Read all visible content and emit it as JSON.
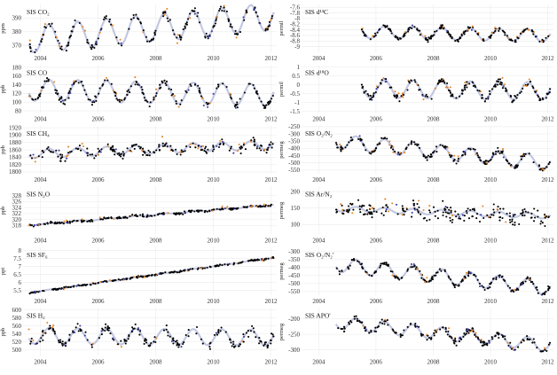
{
  "chart_data": [
    {
      "type": "scatter",
      "title": "SIS CO₂",
      "ylabel": "ppm",
      "ylim": [
        365,
        400
      ],
      "yticks": [
        370,
        380,
        390
      ],
      "xlim": [
        2003.4,
        2012.2
      ],
      "xticks": [
        "2004",
        "2006",
        "2008",
        "2010",
        "2012"
      ],
      "x_start": 2003.6,
      "x_end": 2012.1,
      "series_style": "seasonal",
      "trend": [
        375,
        2.0
      ],
      "amplitude": 10,
      "noise": 2.5
    },
    {
      "type": "scatter",
      "title": "SIS CO",
      "ylabel": "ppb",
      "ylim": [
        75,
        185
      ],
      "yticks": [
        80,
        100,
        120,
        140,
        160,
        180
      ],
      "xlim": [
        2003.4,
        2012.2
      ],
      "xticks": [
        "2004",
        "2006",
        "2008",
        "2010",
        "2012"
      ],
      "x_start": 2003.6,
      "x_end": 2012.1,
      "series_style": "seasonal",
      "trend": [
        128,
        -1.5
      ],
      "amplitude": 25,
      "noise": 8
    },
    {
      "type": "scatter",
      "title": "SIS CH₄",
      "ylabel": "ppb",
      "ylim": [
        1795,
        1925
      ],
      "yticks": [
        1800,
        1820,
        1840,
        1860,
        1880,
        1900,
        1920
      ],
      "xlim": [
        2003.4,
        2012.2
      ],
      "xticks": [
        "2004",
        "2006",
        "2008",
        "2010",
        "2012"
      ],
      "x_start": 2003.6,
      "x_end": 2012.1,
      "series_style": "seasonal",
      "trend": [
        1850,
        3.0
      ],
      "amplitude": 12,
      "noise": 12
    },
    {
      "type": "scatter",
      "title": "SIS N₂O",
      "ylabel": "ppb",
      "ylim": [
        315,
        331
      ],
      "yticks": [
        318,
        320,
        322,
        324,
        326,
        328
      ],
      "xlim": [
        2003.4,
        2012.2
      ],
      "xticks": [
        "2004",
        "2006",
        "2008",
        "2010",
        "2012"
      ],
      "x_start": 2003.6,
      "x_end": 2012.1,
      "series_style": "trend",
      "trend": [
        318.4,
        0.8
      ],
      "amplitude": 0.2,
      "noise": 0.4
    },
    {
      "type": "scatter",
      "title": "SIS SF₆",
      "ylabel": "ppt",
      "ylim": [
        5.2,
        8.2
      ],
      "yticks": [
        5.5,
        6.0,
        6.5,
        7.0,
        7.5,
        8.0
      ],
      "xlim": [
        2003.4,
        2012.2
      ],
      "xticks": [
        "2004",
        "2006",
        "2008",
        "2010",
        "2012"
      ],
      "x_start": 2003.6,
      "x_end": 2012.1,
      "series_style": "trend",
      "trend": [
        5.45,
        0.26
      ],
      "amplitude": 0.02,
      "noise": 0.05
    },
    {
      "type": "scatter",
      "title": "SIS H₂",
      "ylabel": "ppb",
      "ylim": [
        485,
        605
      ],
      "yticks": [
        500,
        520,
        540,
        560,
        580,
        600
      ],
      "xlim": [
        2003.4,
        2012.2
      ],
      "xticks": [
        "2004",
        "2006",
        "2008",
        "2010",
        "2012"
      ],
      "x_start": 2003.6,
      "x_end": 2012.1,
      "series_style": "seasonal",
      "trend": [
        535,
        -0.5
      ],
      "amplitude": 20,
      "noise": 12
    },
    {
      "type": "scatter",
      "title": "SIS d¹³C",
      "ylabel": "permil",
      "ylim": [
        -9.2,
        -7.5
      ],
      "yticks": [
        -9.0,
        -8.8,
        -8.6,
        -8.4,
        -8.2,
        -8.0,
        -7.8,
        -7.6
      ],
      "xlim": [
        2003.4,
        2012.2
      ],
      "xticks": [
        "2004",
        "2006",
        "2008",
        "2010",
        "2012"
      ],
      "x_start": 2005.5,
      "x_end": 2012.1,
      "series_style": "seasonal",
      "trend": [
        -8.45,
        -0.02
      ],
      "amplitude": 0.22,
      "noise": 0.07
    },
    {
      "type": "scatter",
      "title": "SIS d¹⁸O",
      "ylabel": "permil",
      "ylim": [
        -1.6,
        1.1
      ],
      "yticks": [
        -1.5,
        -1.0,
        -0.5,
        0.0,
        0.5,
        1.0
      ],
      "xlim": [
        2003.4,
        2012.2
      ],
      "xticks": [
        "2004",
        "2006",
        "2008",
        "2010",
        "2012"
      ],
      "x_start": 2005.5,
      "x_end": 2012.1,
      "series_style": "seasonal",
      "trend": [
        -0.2,
        -0.02
      ],
      "amplitude": 0.5,
      "noise": 0.18
    },
    {
      "type": "scatter",
      "title": "SIS O₂/N₂",
      "ylabel": "permeg",
      "ylim": [
        -575,
        -245
      ],
      "yticks": [
        -550,
        -500,
        -450,
        -400,
        -350,
        -300,
        -250
      ],
      "xlim": [
        2003.4,
        2012.2
      ],
      "xticks": [
        "2004",
        "2006",
        "2008",
        "2010",
        "2012"
      ],
      "x_start": 2004.6,
      "x_end": 2012.1,
      "series_style": "seasonal",
      "trend": [
        -340,
        -20
      ],
      "amplitude": 50,
      "noise": 18
    },
    {
      "type": "scatter",
      "title": "SIS Ar/N₂",
      "ylabel": "permeg",
      "ylim": [
        70,
        215
      ],
      "yticks": [
        100,
        150,
        200
      ],
      "xlim": [
        2003.4,
        2012.2
      ],
      "xticks": [
        "2004",
        "2006",
        "2008",
        "2010",
        "2012"
      ],
      "x_start": 2004.6,
      "x_end": 2012.1,
      "series_style": "noisy",
      "trend": [
        150,
        -3
      ],
      "amplitude": 8,
      "noise": 22
    },
    {
      "type": "scatter",
      "title": "SIS O₂/N₂'",
      "ylabel": "permeg",
      "ylim": [
        -575,
        -275
      ],
      "yticks": [
        -550,
        -500,
        -450,
        -400,
        -350,
        -300
      ],
      "xlim": [
        2003.4,
        2012.2
      ],
      "xticks": [
        "2004",
        "2006",
        "2008",
        "2010",
        "2012"
      ],
      "x_start": 2004.6,
      "x_end": 2012.1,
      "series_style": "seasonal",
      "trend": [
        -370,
        -20
      ],
      "amplitude": 45,
      "noise": 15
    },
    {
      "type": "scatter",
      "title": "SIS APO'",
      "ylabel": "permeg",
      "ylim": [
        -320,
        -165
      ],
      "yticks": [
        -300,
        -250,
        -200
      ],
      "xlim": [
        2003.4,
        2012.2
      ],
      "xticks": [
        "2004",
        "2006",
        "2008",
        "2010",
        "2012"
      ],
      "x_start": 2004.6,
      "x_end": 2012.1,
      "series_style": "seasonal",
      "trend": [
        -205,
        -10
      ],
      "amplitude": 20,
      "noise": 10
    }
  ],
  "colors": {
    "background": "#ffffff",
    "grid": "#ebebeb",
    "points_main": "#000000",
    "points_flagged": "#e8872a",
    "points_blue": "#3b3fa8",
    "fit_line": "#a9b0d6"
  }
}
